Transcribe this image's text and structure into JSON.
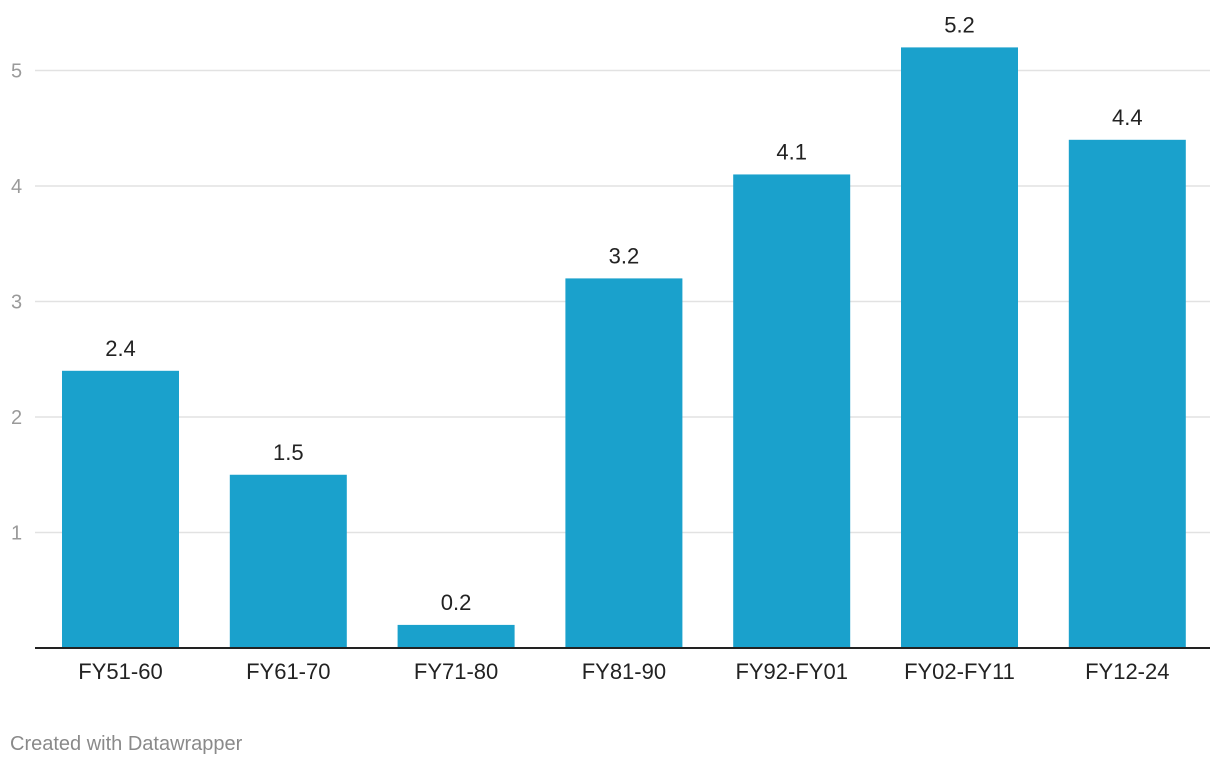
{
  "chart_data": {
    "type": "bar",
    "categories": [
      "FY51-60",
      "FY61-70",
      "FY71-80",
      "FY81-90",
      "FY92-FY01",
      "FY02-FY11",
      "FY12-24"
    ],
    "values": [
      2.4,
      1.5,
      0.2,
      3.2,
      4.1,
      5.2,
      4.4
    ],
    "data_labels": [
      "2.4",
      "1.5",
      "0.2",
      "3.2",
      "4.1",
      "5.2",
      "4.4"
    ],
    "y_ticks": [
      1,
      2,
      3,
      4,
      5
    ],
    "ylim": [
      0,
      5.2
    ],
    "grid": true,
    "bar_color": "#1aa1cc"
  },
  "footer": {
    "credit": "Created with Datawrapper"
  }
}
